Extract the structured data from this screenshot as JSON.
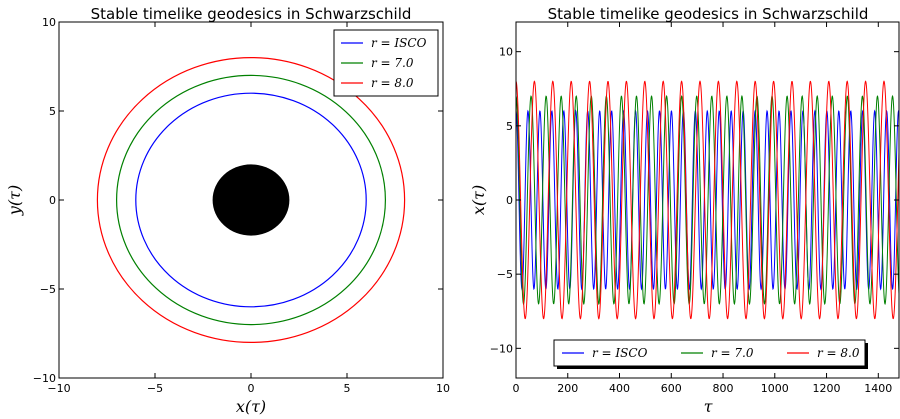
{
  "chart_data": [
    {
      "type": "line",
      "title": "Stable timelike geodesics in Schwarzschild",
      "xlabel": "x(τ)",
      "ylabel": "y(τ)",
      "xlim": [
        -10,
        10
      ],
      "ylim": [
        -10,
        10
      ],
      "xticks": [
        "−10",
        "−5",
        "0",
        "5",
        "10"
      ],
      "yticks": [
        "−10",
        "−5",
        "0",
        "5",
        "10"
      ],
      "legend_position": "top-right",
      "black_hole_radius": 2,
      "series": [
        {
          "name": "r = ISCO",
          "radius": 6,
          "color": "#0000ff"
        },
        {
          "name": "r = 7.0",
          "radius": 7,
          "color": "#008000"
        },
        {
          "name": "r = 8.0",
          "radius": 8,
          "color": "#ff0000"
        }
      ]
    },
    {
      "type": "line",
      "title": "Stable timelike geodesics in Schwarzschild",
      "xlabel": "τ",
      "ylabel": "x(τ)",
      "xlim": [
        0,
        1480
      ],
      "ylim": [
        -12,
        12
      ],
      "xticks": [
        "0",
        "200",
        "400",
        "600",
        "800",
        "1000",
        "1200",
        "1400"
      ],
      "yticks": [
        "−10",
        "−5",
        "0",
        "5",
        "10"
      ],
      "legend_position": "bottom-center",
      "series": [
        {
          "name": "r = ISCO",
          "amplitude": 6,
          "period": 46.2,
          "color": "#0000ff"
        },
        {
          "name": "r = 7.0",
          "amplitude": 7,
          "period": 58.2,
          "color": "#008000"
        },
        {
          "name": "r = 8.0",
          "amplitude": 8,
          "period": 71.1,
          "color": "#ff0000"
        }
      ]
    }
  ]
}
